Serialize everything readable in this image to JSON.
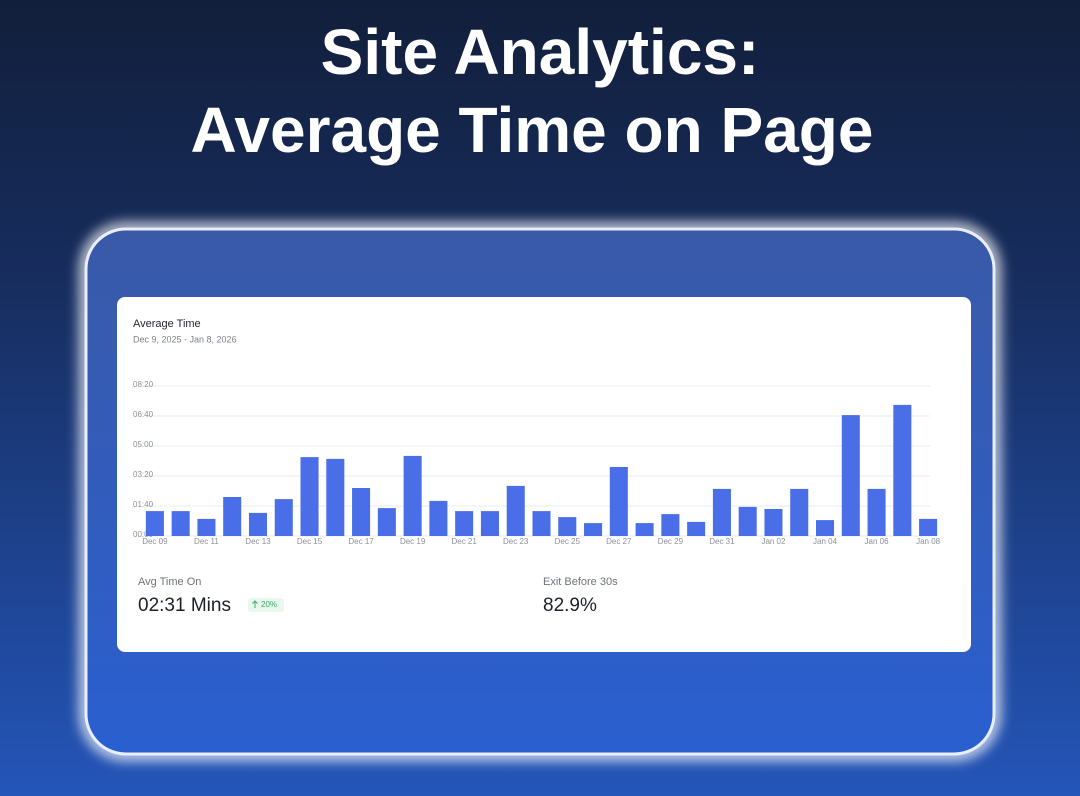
{
  "header": {
    "title_line1": "Site Analytics:",
    "title_line2": "Average Time on Page"
  },
  "card": {
    "title": "Average Time",
    "date_range": "Dec 9, 2025 - Jan 8, 2026"
  },
  "chart_data": {
    "type": "bar",
    "color": "#4a6ee8",
    "grid": true,
    "categories": [
      "Dec 09",
      null,
      "Dec 11",
      null,
      "Dec 13",
      null,
      "Dec 15",
      null,
      "Dec 17",
      null,
      "Dec 19",
      null,
      "Dec 21",
      null,
      "Dec 23",
      null,
      "Dec 25",
      null,
      "Dec 27",
      null,
      "Dec 29",
      null,
      "Dec 31",
      null,
      "Jan 02",
      null,
      "Jan 04",
      null,
      "Jan 06",
      null,
      "Jan 08"
    ],
    "values": [
      83,
      83,
      57,
      130,
      77,
      123,
      263,
      257,
      160,
      93,
      267,
      117,
      83,
      83,
      167,
      83,
      63,
      43,
      230,
      43,
      73,
      47,
      157,
      97,
      90,
      157,
      53,
      403,
      157,
      437,
      57
    ],
    "ylim": [
      0,
      500
    ],
    "yticks": [
      {
        "value": 0,
        "label": "00:00"
      },
      {
        "value": 100,
        "label": "01:40"
      },
      {
        "value": 200,
        "label": "03:20"
      },
      {
        "value": 300,
        "label": "05:00"
      },
      {
        "value": 400,
        "label": "06:40"
      },
      {
        "value": 500,
        "label": "08:20"
      }
    ]
  },
  "stats": [
    {
      "label": "Avg Time On",
      "value": "02:31 Mins",
      "change": "20%"
    },
    {
      "label": "Exit Before 30s",
      "value": "82.9%"
    }
  ]
}
